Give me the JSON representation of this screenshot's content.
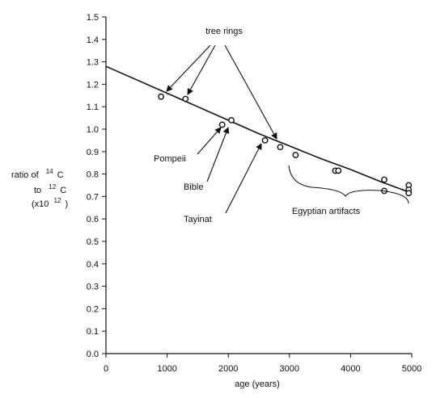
{
  "chart_data": {
    "type": "scatter",
    "title": "",
    "xlabel": "age (years)",
    "ylabel_parts": {
      "line1_prefix": "ratio of",
      "line1_sup": "14",
      "line1_suffix": "C",
      "line2_prefix": "to",
      "line2_sup": "12",
      "line2_suffix": "C",
      "line3_prefix": "(x10",
      "line3_sup": "12",
      "line3_suffix": ")"
    },
    "xlim": [
      0,
      5000
    ],
    "ylim": [
      0.0,
      1.5
    ],
    "xticks": [
      0,
      1000,
      2000,
      3000,
      4000,
      5000
    ],
    "xtick_labels": [
      "0",
      "1000",
      "2000",
      "3000",
      "4000",
      "5000"
    ],
    "yticks": [
      0.0,
      0.1,
      0.2,
      0.3,
      0.4,
      0.5,
      0.6,
      0.7,
      0.8,
      0.9,
      1.0,
      1.1,
      1.2,
      1.3,
      1.4,
      1.5
    ],
    "ytick_labels": [
      "0.0",
      "0.1",
      "0.2",
      "0.3",
      "0.4",
      "0.5",
      "0.6",
      "0.7",
      "0.8",
      "0.9",
      "1.0",
      "1.1",
      "1.2",
      "1.3",
      "1.4",
      "1.5"
    ],
    "grid": false,
    "series": [
      {
        "kind": "points",
        "x": [
          900,
          1300,
          1900,
          2050,
          2600,
          2850,
          3100,
          3750,
          3800,
          4550,
          4550,
          4950,
          4950,
          4950
        ],
        "y": [
          1.145,
          1.135,
          1.02,
          1.04,
          0.95,
          0.92,
          0.885,
          0.815,
          0.815,
          0.775,
          0.725,
          0.75,
          0.73,
          0.715
        ]
      },
      {
        "kind": "curve",
        "x": [
          0,
          500,
          1000,
          1500,
          2000,
          2500,
          3000,
          3500,
          4000,
          4500,
          5000
        ],
        "y": [
          1.28,
          1.22,
          1.16,
          1.1,
          1.04,
          0.98,
          0.925,
          0.87,
          0.82,
          0.765,
          0.715
        ]
      }
    ],
    "annotations": [
      {
        "text": "tree rings"
      },
      {
        "text": "Pompeii"
      },
      {
        "text": "Bible"
      },
      {
        "text": "Tayinat"
      },
      {
        "text": "Egyptian artifacts"
      }
    ]
  }
}
